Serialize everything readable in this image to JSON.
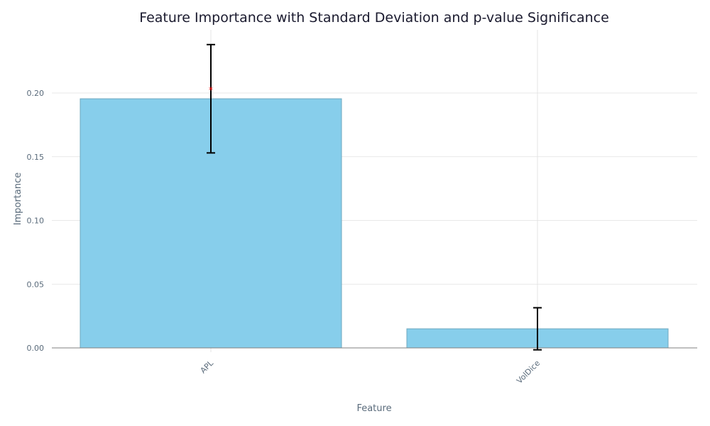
{
  "chart_data": {
    "type": "bar",
    "title": "Feature Importance with Standard Deviation and p-value Significance",
    "xlabel": "Feature",
    "ylabel": "Importance",
    "categories": [
      "APL",
      "VolDice"
    ],
    "values": [
      0.1955,
      0.015
    ],
    "std": [
      0.0425,
      0.0165
    ],
    "significance_markers": [
      "*",
      ""
    ],
    "ylim": [
      -0.0035,
      0.2515
    ],
    "yticks": [
      0.0,
      0.05,
      0.1,
      0.15,
      0.2
    ],
    "ytick_labels": [
      "0.00",
      "0.05",
      "0.10",
      "0.15",
      "0.20"
    ],
    "grid": true,
    "colors": {
      "bar_fill": "#87ceeb",
      "bar_edge": "#6fa8bf",
      "error_bar": "#000000",
      "significance": "#ff0000",
      "grid": "#e0e0e0",
      "zero_line": "#808080"
    }
  }
}
